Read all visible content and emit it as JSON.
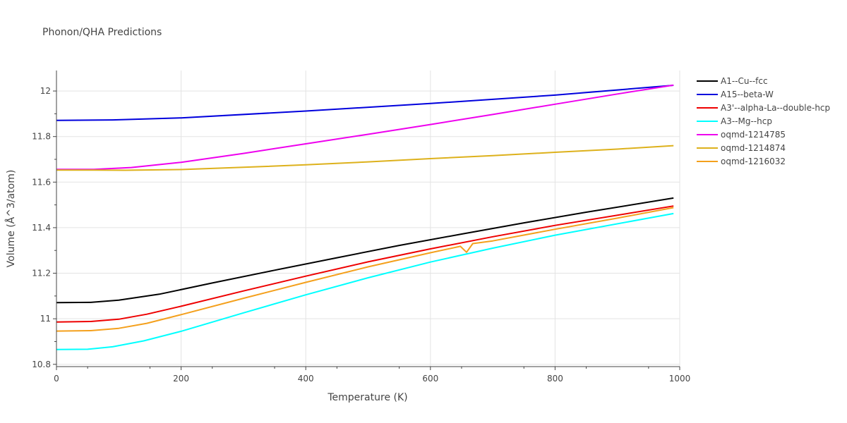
{
  "chart_data": {
    "type": "line",
    "title": "Phonon/QHA Predictions",
    "xlabel": "Temperature (K)",
    "ylabel": "Volume (Å^3/atom)",
    "xlim": [
      0,
      1000
    ],
    "ylim": [
      10.79,
      12.09
    ],
    "x_ticks": [
      0,
      200,
      400,
      600,
      800,
      1000
    ],
    "x_tick_labels": [
      "0",
      "200",
      "400",
      "600",
      "800",
      "1000"
    ],
    "y_ticks": [
      10.8,
      11.0,
      11.2,
      11.4,
      11.6,
      11.8,
      12.0
    ],
    "y_tick_labels": [
      "10.8",
      "11",
      "11.2",
      "11.4",
      "11.6",
      "11.8",
      "12"
    ],
    "grid": true,
    "legend_position": "right",
    "series": [
      {
        "name": "A1--Cu--fcc",
        "color": "#000000",
        "x": [
          0,
          55,
          100,
          165,
          250,
          350,
          450,
          550,
          650,
          750,
          850,
          990
        ],
        "y": [
          11.071,
          11.072,
          11.082,
          11.108,
          11.157,
          11.213,
          11.268,
          11.322,
          11.372,
          11.421,
          11.468,
          11.53
        ]
      },
      {
        "name": "A15--beta-W",
        "color": "#0000dd",
        "x": [
          0,
          90,
          200,
          400,
          600,
          800,
          990
        ],
        "y": [
          11.871,
          11.873,
          11.882,
          11.912,
          11.945,
          11.982,
          12.025
        ]
      },
      {
        "name": "A3'--alpha-La--double-hcp",
        "color": "#ee0000",
        "x": [
          0,
          55,
          100,
          145,
          200,
          300,
          400,
          500,
          600,
          700,
          800,
          990
        ],
        "y": [
          10.986,
          10.988,
          10.998,
          11.02,
          11.055,
          11.122,
          11.187,
          11.25,
          11.307,
          11.36,
          11.41,
          11.495
        ]
      },
      {
        "name": "A3--Mg--hcp",
        "color": "#00ffff",
        "x": [
          0,
          50,
          90,
          140,
          200,
          300,
          400,
          500,
          600,
          700,
          800,
          990
        ],
        "y": [
          10.865,
          10.866,
          10.877,
          10.903,
          10.945,
          11.026,
          11.105,
          11.18,
          11.249,
          11.31,
          11.367,
          11.462
        ]
      },
      {
        "name": "oqmd-1214785",
        "color": "#ee00ee",
        "x": [
          0,
          60,
          120,
          200,
          300,
          400,
          500,
          600,
          700,
          800,
          900,
          990
        ],
        "y": [
          11.656,
          11.656,
          11.664,
          11.687,
          11.726,
          11.768,
          11.81,
          11.853,
          11.897,
          11.942,
          11.987,
          12.026
        ]
      },
      {
        "name": "oqmd-1214874",
        "color": "#ddb11c",
        "x": [
          0,
          60,
          110,
          200,
          300,
          400,
          500,
          600,
          700,
          800,
          900,
          990
        ],
        "y": [
          11.653,
          11.653,
          11.652,
          11.655,
          11.665,
          11.676,
          11.689,
          11.703,
          11.716,
          11.731,
          11.745,
          11.76
        ]
      },
      {
        "name": "oqmd-1216032",
        "color": "#f4a01c",
        "x": [
          0,
          55,
          100,
          145,
          200,
          300,
          400,
          500,
          600,
          648,
          658,
          668,
          700,
          800,
          900,
          990
        ],
        "y": [
          10.946,
          10.948,
          10.958,
          10.98,
          11.018,
          11.09,
          11.16,
          11.228,
          11.29,
          11.318,
          11.292,
          11.33,
          11.342,
          11.393,
          11.442,
          11.488
        ]
      }
    ]
  }
}
